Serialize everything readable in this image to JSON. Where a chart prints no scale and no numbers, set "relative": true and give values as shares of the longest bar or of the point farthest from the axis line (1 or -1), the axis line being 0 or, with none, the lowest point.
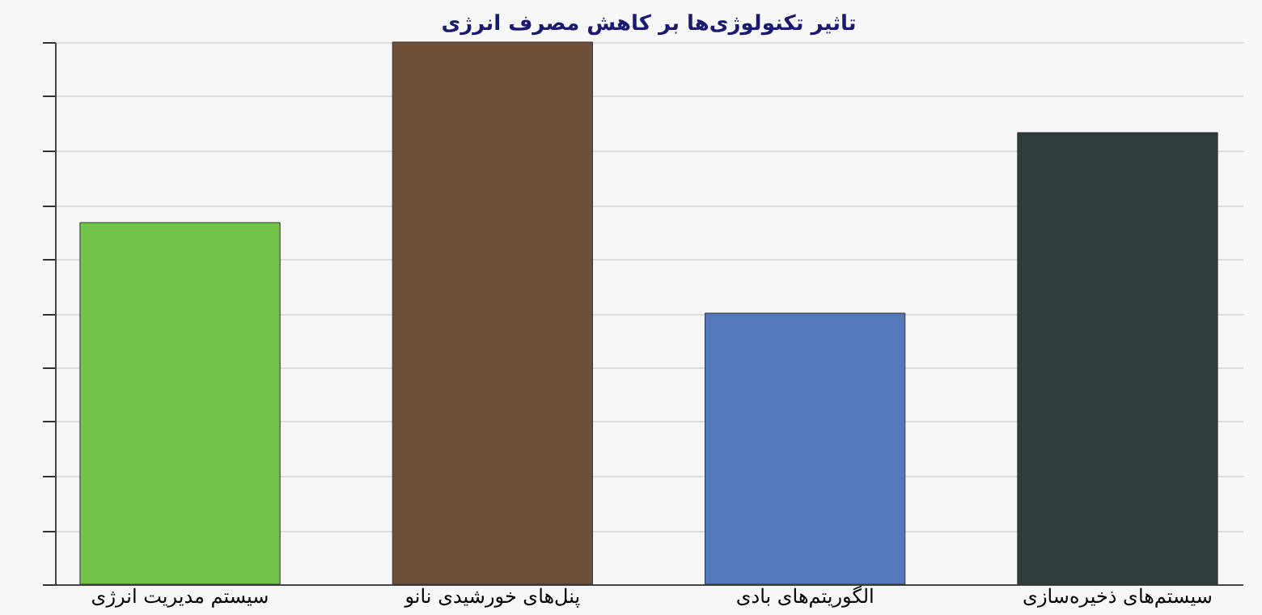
{
  "chart_data": {
    "type": "bar",
    "title": "تاثیر تکنولوژی‌ها بر کاهش مصرف انرژی",
    "relative": true,
    "grid": "y",
    "categories": [
      "سیستم مدیریت انرژی",
      "پنل‌های خورشیدی  نانو",
      "الگوریتم‌های بادی",
      "سیستم‌های ذخیره‌سازی"
    ],
    "values": [
      0.667,
      1,
      0.5,
      0.833
    ],
    "colors": [
      "#72c44a",
      "#6e5038",
      "#5577bb",
      "#2e3f3b"
    ]
  }
}
